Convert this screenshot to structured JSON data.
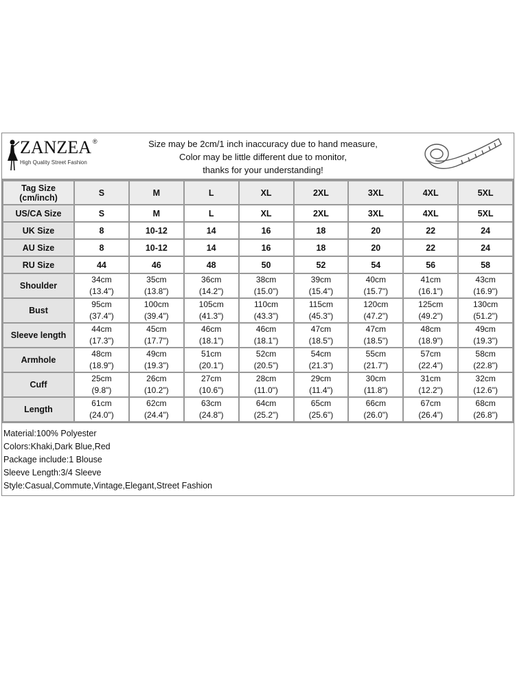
{
  "header": {
    "brand": "ZANZEA",
    "registered": "®",
    "tagline": "High Quality Street Fashion",
    "notice": [
      "Size may be 2cm/1 inch inaccuracy due to hand measure,",
      "Color may be little different due to monitor,",
      "thanks for your understanding!"
    ],
    "icon": "measuring-tape-icon"
  },
  "size_rows": [
    {
      "label": "Tag Size (cm/inch)",
      "values": [
        "S",
        "M",
        "L",
        "XL",
        "2XL",
        "3XL",
        "4XL",
        "5XL"
      ]
    },
    {
      "label": "US/CA Size",
      "values": [
        "S",
        "M",
        "L",
        "XL",
        "2XL",
        "3XL",
        "4XL",
        "5XL"
      ]
    },
    {
      "label": "UK Size",
      "values": [
        "8",
        "10-12",
        "14",
        "16",
        "18",
        "20",
        "22",
        "24"
      ]
    },
    {
      "label": "AU Size",
      "values": [
        "8",
        "10-12",
        "14",
        "16",
        "18",
        "20",
        "22",
        "24"
      ]
    },
    {
      "label": "RU Size",
      "values": [
        "44",
        "46",
        "48",
        "50",
        "52",
        "54",
        "56",
        "58"
      ]
    }
  ],
  "measure_rows": [
    {
      "label": "Shoulder",
      "cm": [
        "34cm",
        "35cm",
        "36cm",
        "38cm",
        "39cm",
        "40cm",
        "41cm",
        "43cm"
      ],
      "inch": [
        "(13.4\")",
        "(13.8\")",
        "(14.2\")",
        "(15.0\")",
        "(15.4\")",
        "(15.7\")",
        "(16.1\")",
        "(16.9\")"
      ]
    },
    {
      "label": "Bust",
      "cm": [
        "95cm",
        "100cm",
        "105cm",
        "110cm",
        "115cm",
        "120cm",
        "125cm",
        "130cm"
      ],
      "inch": [
        "(37.4\")",
        "(39.4\")",
        "(41.3\")",
        "(43.3\")",
        "(45.3\")",
        "(47.2\")",
        "(49.2\")",
        "(51.2\")"
      ]
    },
    {
      "label": "Sleeve length",
      "cm": [
        "44cm",
        "45cm",
        "46cm",
        "46cm",
        "47cm",
        "47cm",
        "48cm",
        "49cm"
      ],
      "inch": [
        "(17.3\")",
        "(17.7\")",
        "(18.1\")",
        "(18.1\")",
        "(18.5\")",
        "(18.5\")",
        "(18.9\")",
        "(19.3\")"
      ]
    },
    {
      "label": "Armhole",
      "cm": [
        "48cm",
        "49cm",
        "51cm",
        "52cm",
        "54cm",
        "55cm",
        "57cm",
        "58cm"
      ],
      "inch": [
        "(18.9\")",
        "(19.3\")",
        "(20.1\")",
        "(20.5\")",
        "(21.3\")",
        "(21.7\")",
        "(22.4\")",
        "(22.8\")"
      ]
    },
    {
      "label": "Cuff",
      "cm": [
        "25cm",
        "26cm",
        "27cm",
        "28cm",
        "29cm",
        "30cm",
        "31cm",
        "32cm"
      ],
      "inch": [
        "(9.8\")",
        "(10.2\")",
        "(10.6\")",
        "(11.0\")",
        "(11.4\")",
        "(11.8\")",
        "(12.2\")",
        "(12.6\")"
      ]
    },
    {
      "label": "Length",
      "cm": [
        "61cm",
        "62cm",
        "63cm",
        "64cm",
        "65cm",
        "66cm",
        "67cm",
        "68cm"
      ],
      "inch": [
        "(24.0\")",
        "(24.4\")",
        "(24.8\")",
        "(25.2\")",
        "(25.6\")",
        "(26.0\")",
        "(26.4\")",
        "(26.8\")"
      ]
    }
  ],
  "notes": [
    "Material:100% Polyester",
    "Colors:Khaki,Dark Blue,Red",
    "Package include:1 Blouse",
    "Sleeve Length:3/4 Sleeve",
    "Style:Casual,Commute,Vintage,Elegant,Street Fashion"
  ]
}
